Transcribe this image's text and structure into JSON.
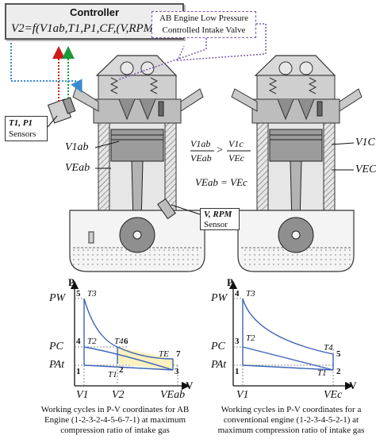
{
  "controller": {
    "title": "Controller",
    "formula": "V2=f(V1ab,T1,P1,CF,(V,RPM))"
  },
  "valve_label": {
    "line1": "AB Engine Low Pressure",
    "line2": "Controlled Intake Valve"
  },
  "sensor_tp": {
    "label": "T1, P1",
    "sub": "Sensors"
  },
  "sensor_vrpm": {
    "label": "V, RPM",
    "sub": "Sensor"
  },
  "engine_labels": {
    "v1ab": "V1ab",
    "veab": "VEab",
    "v1c": "V1C",
    "vec": "VEC"
  },
  "relations": {
    "ratio_left_num": "V1ab",
    "ratio_left_den": "VEab",
    "ratio_right_num": "V1c",
    "ratio_right_den": "VEc",
    "ratio_op": ">",
    "equality": "VEab = VEc"
  },
  "pv_ab": {
    "axis_p": "P",
    "axis_v": "V",
    "p_ticks": [
      "PW",
      "PC",
      "PAt"
    ],
    "v_ticks": [
      "V1",
      "V2",
      "VEab"
    ],
    "points": [
      "1",
      "2",
      "3",
      "4",
      "5",
      "6",
      "7"
    ],
    "temps": [
      "T3",
      "T2",
      "T4",
      "T1",
      "TE"
    ],
    "caption": [
      "Working cycles in P-V coordinates for AB",
      "Engine (1-2-3-2-4-5-6-7-1) at maximum",
      "compression ratio of intake gas"
    ]
  },
  "pv_conv": {
    "axis_p": "P",
    "axis_v": "V",
    "p_ticks": [
      "PW",
      "PC",
      "PAt"
    ],
    "v_ticks": [
      "V1",
      "VEc"
    ],
    "points": [
      "1",
      "2",
      "3",
      "4",
      "5"
    ],
    "temps": [
      "T3",
      "T2",
      "T4",
      "T1"
    ],
    "caption": [
      "Working cycles in P-V coordinates for a",
      "conventional engine (1-2-3-4-5-2-1) at",
      "maximum compression ratio of intake gas"
    ]
  },
  "colors": {
    "curve_blue": "#3b63b5",
    "signal_red": "#cc1a1a",
    "signal_green": "#1a9a3a",
    "signal_blue": "#3a8ad0",
    "signal_purple": "#7a5aa8",
    "fill_yellow": "#fbf1bf"
  }
}
